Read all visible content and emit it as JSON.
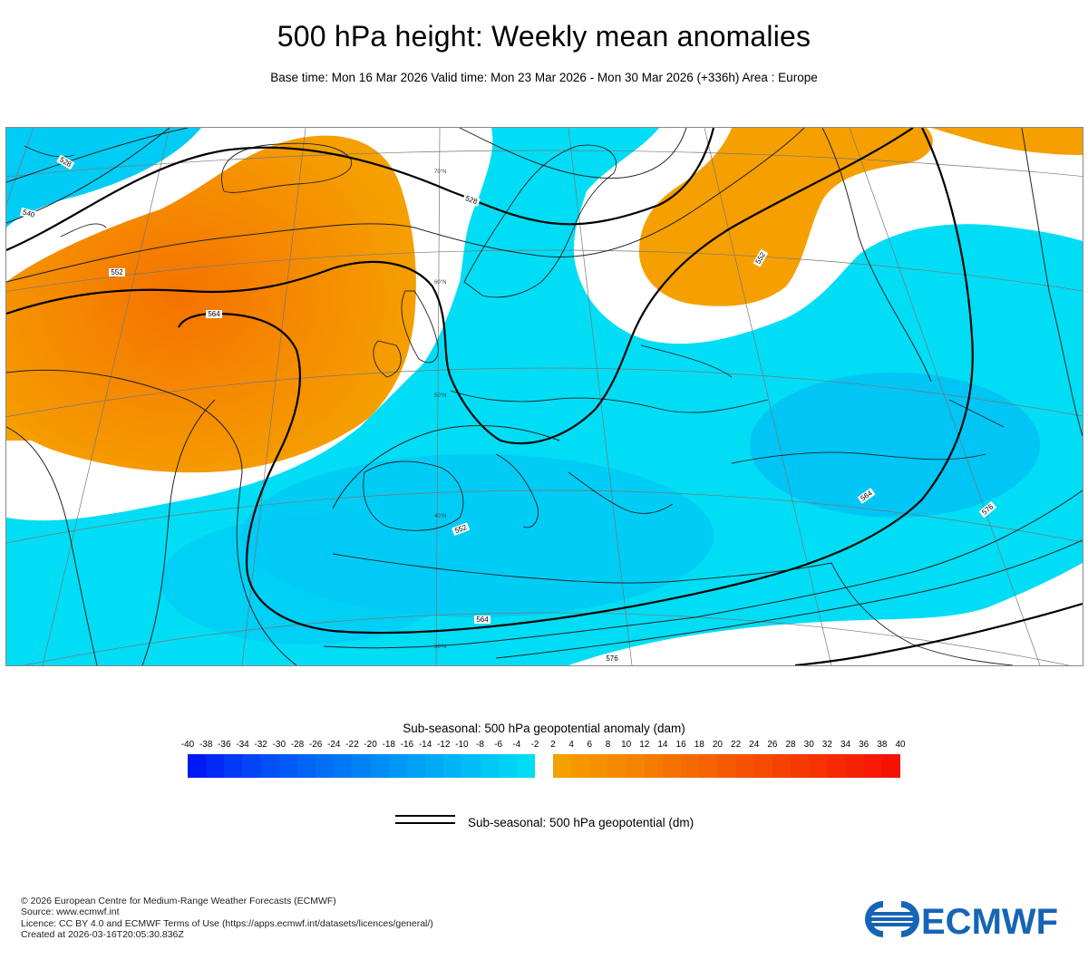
{
  "title": "500 hPa height: Weekly mean anomalies",
  "subtitle": "Base time: Mon 16 Mar 2026 Valid time: Mon 23 Mar 2026 - Mon 30 Mar 2026 (+336h) Area : Europe",
  "map": {
    "contour_labels": [
      "528",
      "540",
      "552",
      "564",
      "552",
      "564",
      "576",
      "576",
      "564",
      "528",
      "552"
    ],
    "graticule_labels": [
      "70°N",
      "60°N",
      "50°N",
      "40°N",
      "30°N"
    ],
    "anomaly_regions": {
      "positive_color": "#f5a000",
      "positive_core_color": "#f57a00",
      "negative_color": "#00ddf5",
      "negative_core_color": "#00b4f5"
    }
  },
  "legend": {
    "colorbar_title": "Sub-seasonal: 500 hPa geopotential anomaly (dam)",
    "ticks": [
      "-40",
      "-38",
      "-36",
      "-34",
      "-32",
      "-30",
      "-28",
      "-26",
      "-24",
      "-22",
      "-20",
      "-18",
      "-16",
      "-14",
      "-12",
      "-10",
      "-8",
      "-6",
      "-4",
      "-2",
      "2",
      "4",
      "6",
      "8",
      "10",
      "12",
      "14",
      "16",
      "18",
      "20",
      "22",
      "24",
      "26",
      "28",
      "30",
      "32",
      "34",
      "36",
      "38",
      "40"
    ],
    "negative_colors": [
      "#0018f5",
      "#0028f5",
      "#0036f5",
      "#0044f5",
      "#0050f5",
      "#005af5",
      "#0064f5",
      "#006ef5",
      "#0078f5",
      "#0082f5",
      "#008cf5",
      "#0096f5",
      "#00a0f5",
      "#00aaf5",
      "#00b4f5",
      "#00bef5",
      "#00c8f5",
      "#00d2f5",
      "#00dcf5"
    ],
    "positive_colors": [
      "#f5a000",
      "#f59800",
      "#f59000",
      "#f58a00",
      "#f58200",
      "#f57a00",
      "#f57200",
      "#f56a00",
      "#f56200",
      "#f55a00",
      "#f55200",
      "#f54a00",
      "#f54200",
      "#f53a00",
      "#f53200",
      "#f52a00",
      "#f52200",
      "#f51a00",
      "#f51200"
    ],
    "line_label": "Sub-seasonal: 500 hPa geopotential (dm)"
  },
  "footer": {
    "line1": "© 2026 European Centre for Medium-Range Weather Forecasts (ECMWF)",
    "line2": "Source: www.ecmwf.int",
    "line3": "Licence: CC BY 4.0 and ECMWF Terms of Use (https://apps.ecmwf.int/datasets/licences/general/)",
    "line4": "Created at 2026-03-16T20:05:30.836Z"
  },
  "logo": {
    "text": "ECMWF",
    "color": "#1565b5"
  }
}
